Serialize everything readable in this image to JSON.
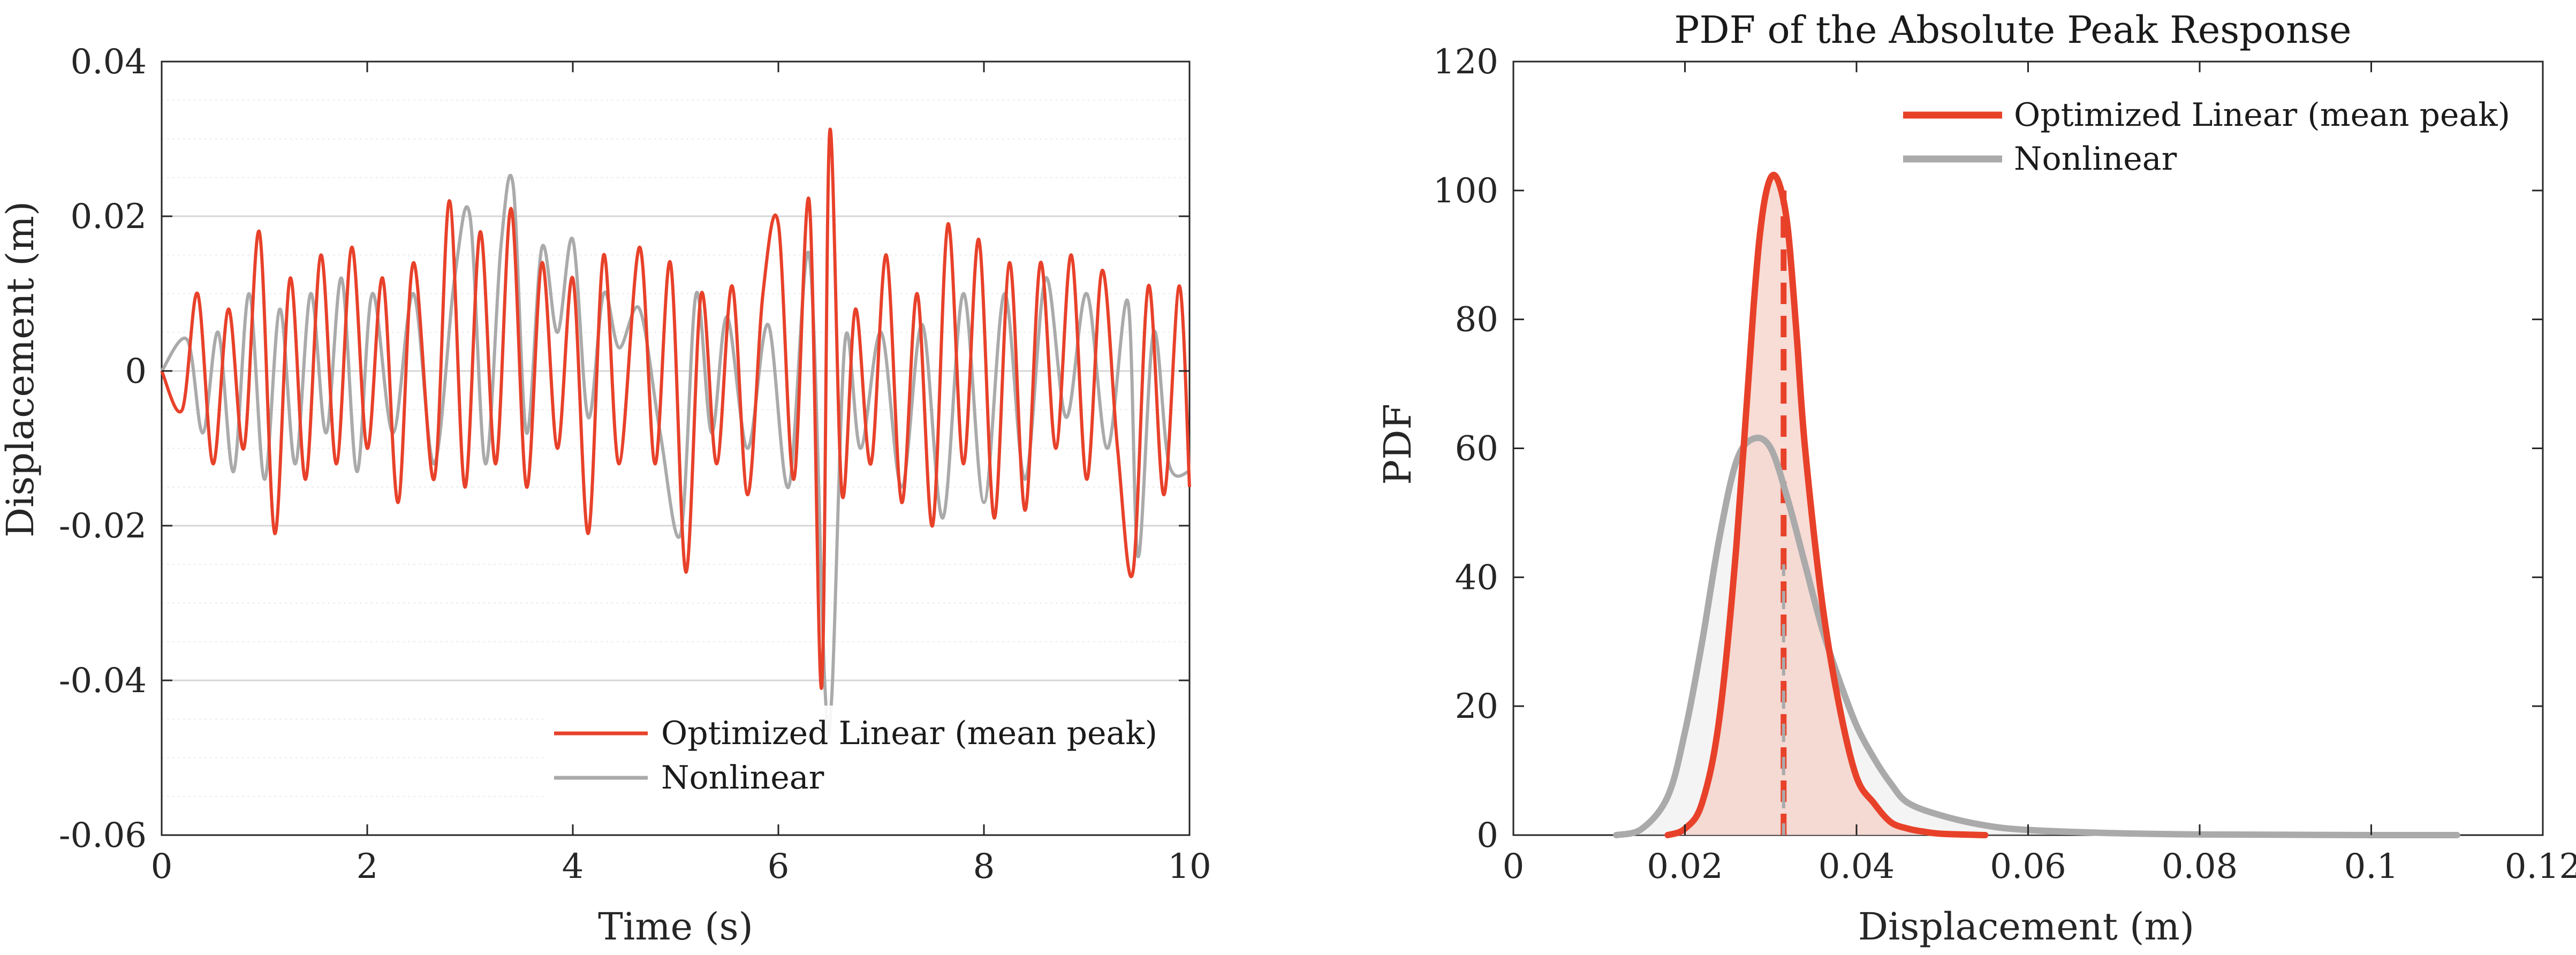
{
  "colors": {
    "linear": "#e8412a",
    "nonlinear": "#aaaaaa",
    "linear_fill": "#f6d0c8",
    "nonlinear_fill": "#e6e6e6",
    "axis": "#262626",
    "grid": "#e0e0e0"
  },
  "chart_data": [
    {
      "type": "line",
      "title": "",
      "xlabel": "Time (s)",
      "ylabel": "Displacement (m)",
      "xlim": [
        0,
        10
      ],
      "ylim": [
        -0.06,
        0.04
      ],
      "xticks": [
        0,
        2,
        4,
        6,
        8,
        10
      ],
      "xtick_labels": [
        "0",
        "2",
        "4",
        "6",
        "8",
        "10"
      ],
      "yticks": [
        -0.06,
        -0.04,
        -0.02,
        0,
        0.02,
        0.04
      ],
      "ytick_labels": [
        "-0.06",
        "-0.04",
        "-0.02",
        "0",
        "0.02",
        "0.04"
      ],
      "minor_grid_step": 0.005,
      "legend_position": "bottom-right",
      "series": [
        {
          "name": "Optimized Linear (mean peak)",
          "color_key": "linear",
          "t": [
            0,
            0.2,
            0.35,
            0.5,
            0.65,
            0.8,
            0.95,
            1.1,
            1.25,
            1.4,
            1.55,
            1.7,
            1.85,
            2.0,
            2.15,
            2.3,
            2.45,
            2.65,
            2.8,
            2.95,
            3.1,
            3.25,
            3.4,
            3.55,
            3.7,
            3.85,
            4.0,
            4.15,
            4.3,
            4.45,
            4.65,
            4.8,
            4.95,
            5.1,
            5.25,
            5.4,
            5.55,
            5.7,
            5.85,
            6.0,
            6.15,
            6.3,
            6.42,
            6.5,
            6.62,
            6.75,
            6.9,
            7.05,
            7.2,
            7.35,
            7.5,
            7.65,
            7.8,
            7.95,
            8.1,
            8.25,
            8.4,
            8.55,
            8.7,
            8.85,
            9.0,
            9.15,
            9.3,
            9.45,
            9.6,
            9.75,
            9.9,
            10.0
          ],
          "values": [
            0.0,
            -0.005,
            0.01,
            -0.012,
            0.008,
            -0.01,
            0.018,
            -0.021,
            0.012,
            -0.014,
            0.015,
            -0.012,
            0.016,
            -0.01,
            0.012,
            -0.017,
            0.014,
            -0.014,
            0.022,
            -0.015,
            0.018,
            -0.012,
            0.021,
            -0.015,
            0.014,
            -0.01,
            0.012,
            -0.021,
            0.015,
            -0.012,
            0.016,
            -0.012,
            0.014,
            -0.026,
            0.01,
            -0.012,
            0.011,
            -0.016,
            0.01,
            0.019,
            -0.014,
            0.022,
            -0.041,
            0.031,
            -0.016,
            0.008,
            -0.012,
            0.015,
            -0.017,
            0.01,
            -0.02,
            0.019,
            -0.012,
            0.017,
            -0.019,
            0.014,
            -0.018,
            0.014,
            -0.01,
            0.015,
            -0.014,
            0.013,
            -0.01,
            -0.026,
            0.011,
            -0.016,
            0.011,
            -0.015
          ]
        },
        {
          "name": "Nonlinear",
          "color_key": "nonlinear",
          "t": [
            0,
            0.25,
            0.4,
            0.55,
            0.7,
            0.85,
            1.0,
            1.15,
            1.3,
            1.45,
            1.6,
            1.75,
            1.9,
            2.05,
            2.25,
            2.45,
            2.65,
            2.85,
            3.0,
            3.15,
            3.3,
            3.42,
            3.55,
            3.7,
            3.85,
            4.0,
            4.15,
            4.3,
            4.45,
            4.65,
            4.85,
            5.05,
            5.2,
            5.35,
            5.5,
            5.7,
            5.9,
            6.1,
            6.3,
            6.45,
            6.52,
            6.65,
            6.8,
            7.0,
            7.2,
            7.4,
            7.6,
            7.8,
            8.0,
            8.2,
            8.4,
            8.6,
            8.8,
            9.0,
            9.2,
            9.4,
            9.5,
            9.65,
            9.8,
            10.0
          ],
          "values": [
            0.0,
            0.004,
            -0.008,
            0.005,
            -0.013,
            0.01,
            -0.014,
            0.008,
            -0.012,
            0.01,
            -0.008,
            0.012,
            -0.013,
            0.01,
            -0.008,
            0.01,
            -0.012,
            0.012,
            0.02,
            -0.012,
            0.016,
            0.024,
            -0.008,
            0.016,
            0.005,
            0.017,
            -0.006,
            0.01,
            0.003,
            0.008,
            -0.008,
            -0.021,
            0.01,
            -0.008,
            0.007,
            -0.01,
            0.006,
            -0.015,
            0.015,
            -0.04,
            -0.042,
            0.004,
            -0.01,
            0.005,
            -0.015,
            0.006,
            -0.019,
            0.01,
            -0.017,
            0.01,
            -0.014,
            0.012,
            -0.006,
            0.01,
            -0.01,
            0.009,
            -0.024,
            0.005,
            -0.012,
            -0.013
          ]
        }
      ]
    },
    {
      "type": "area",
      "title": "PDF of the Absolute Peak Response",
      "xlabel": "Displacement (m)",
      "ylabel": "PDF",
      "xlim": [
        0,
        0.12
      ],
      "ylim": [
        0,
        120
      ],
      "xticks": [
        0,
        0.02,
        0.04,
        0.06,
        0.08,
        0.1,
        0.12
      ],
      "xtick_labels": [
        "0",
        "0.02",
        "0.04",
        "0.06",
        "0.08",
        "0.1",
        "0.12"
      ],
      "yticks": [
        0,
        20,
        40,
        60,
        80,
        100,
        120
      ],
      "ytick_labels": [
        "0",
        "20",
        "40",
        "60",
        "80",
        "100",
        "120"
      ],
      "legend_position": "top-right",
      "mean_line_x": 0.0315,
      "series": [
        {
          "name": "Optimized Linear (mean peak)",
          "color_key": "linear",
          "fill_key": "linear_fill",
          "x": [
            0.018,
            0.02,
            0.022,
            0.024,
            0.026,
            0.028,
            0.029,
            0.03,
            0.031,
            0.032,
            0.033,
            0.034,
            0.036,
            0.038,
            0.04,
            0.042,
            0.044,
            0.046,
            0.048,
            0.05,
            0.055
          ],
          "values": [
            0,
            1,
            5,
            18,
            45,
            82,
            96,
            102,
            101,
            94,
            78,
            60,
            36,
            20,
            9,
            5,
            2,
            1,
            0.5,
            0.2,
            0
          ]
        },
        {
          "name": "Nonlinear",
          "color_key": "nonlinear",
          "fill_key": "nonlinear_fill",
          "x": [
            0.012,
            0.015,
            0.018,
            0.02,
            0.022,
            0.024,
            0.026,
            0.028,
            0.03,
            0.032,
            0.034,
            0.036,
            0.038,
            0.04,
            0.042,
            0.044,
            0.046,
            0.05,
            0.055,
            0.06,
            0.07,
            0.08,
            0.09,
            0.1,
            0.11
          ],
          "values": [
            0,
            1,
            6,
            16,
            30,
            46,
            58,
            61.5,
            60,
            52,
            42,
            32,
            24,
            17,
            12,
            8,
            5,
            3,
            1.5,
            0.8,
            0.3,
            0.1,
            0.05,
            0,
            0
          ]
        }
      ]
    }
  ]
}
